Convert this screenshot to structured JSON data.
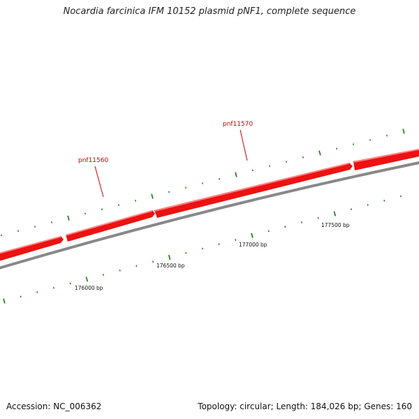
{
  "title": "Nocardia farcinica IFM 10152 plasmid pNF1, complete sequence",
  "footer": {
    "accession": "Accession: NC_006362",
    "stats": "Topology: circular; Length: 184,026 bp; Genes: 160"
  },
  "genes": [
    {
      "name": "pnf11560"
    },
    {
      "name": "pnf11570"
    }
  ],
  "bp_labels": [
    "176000 bp",
    "176500 bp",
    "177000 bp",
    "177500 bp"
  ],
  "colors": {
    "gene_fill": "#ee1111",
    "gene_highlight": "#ff8888",
    "gene_label": "#cc0000",
    "backbone": "#888888",
    "tick": "#117711"
  }
}
